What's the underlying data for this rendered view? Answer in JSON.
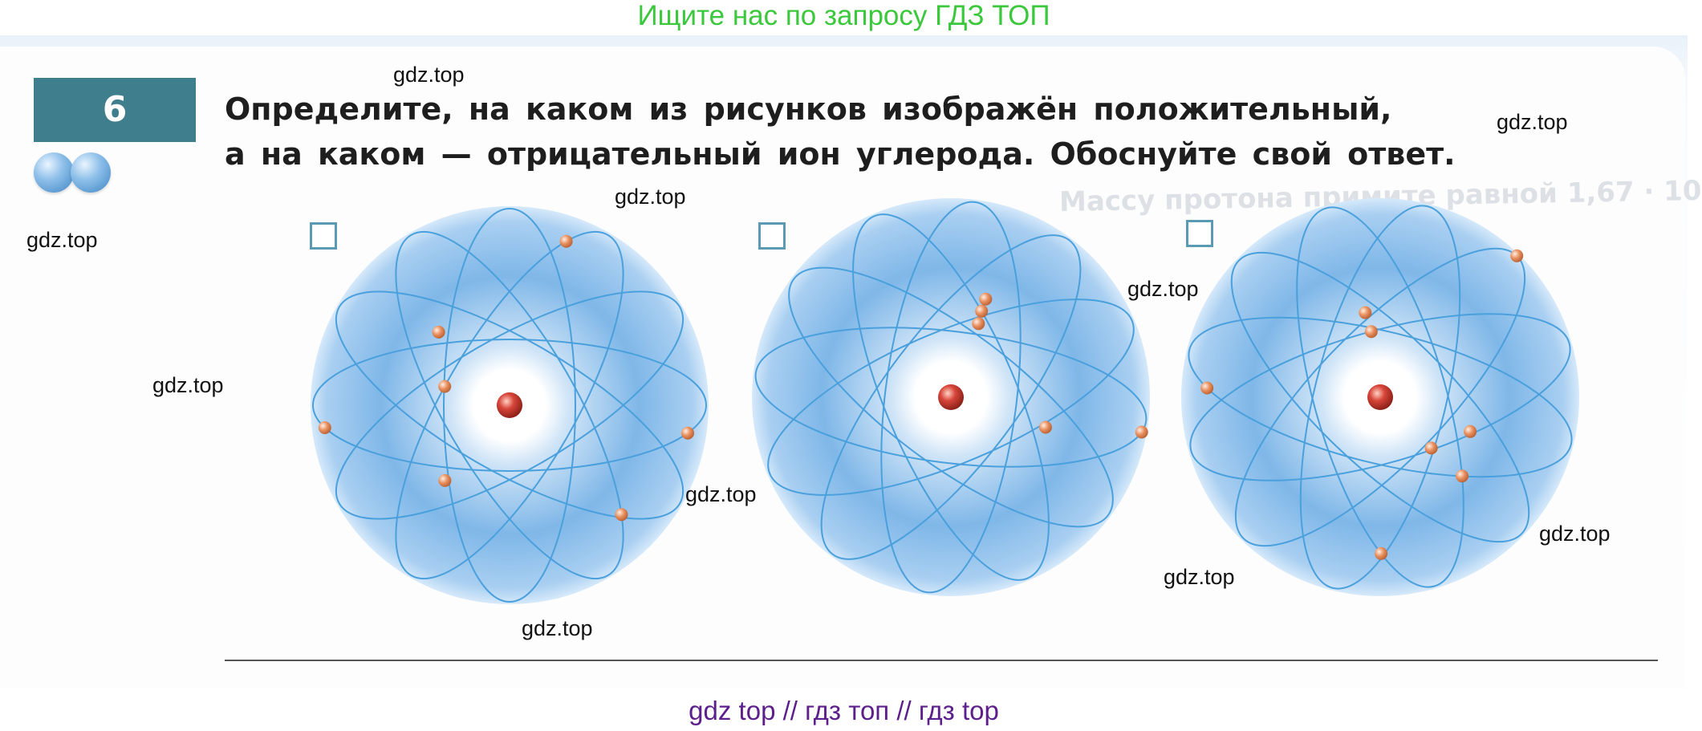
{
  "banner": {
    "text": "Ищите нас по запросу ГДЗ ТОП"
  },
  "task": {
    "number": "6",
    "difficulty_level": 2,
    "line1": "Определите, на каком из рисунков изображён положительный,",
    "line2": "а на каком — отрицательный ион углерода. Обоснуйте свой ответ."
  },
  "ghost_text": "Массу протона примите равной 1,67 · 10",
  "atoms": [
    {
      "name": "atom-1",
      "electron_count": 7,
      "answer_checked": false
    },
    {
      "name": "atom-2",
      "electron_count": 5,
      "answer_checked": false
    },
    {
      "name": "atom-3",
      "electron_count": 8,
      "answer_checked": false
    }
  ],
  "watermarks": [
    "gdz.top",
    "gdz.top",
    "gdz.top",
    "gdz.top",
    "gdz.top",
    "gdz.top",
    "gdz.top",
    "gdz.top",
    "gdz.top",
    "gdz.top"
  ],
  "footer": {
    "text": "gdz top  //  гдз топ  //  гдз top"
  },
  "colors": {
    "banner_green": "#3cc83c",
    "badge_teal": "#3f7e8c",
    "orbit_blue": "#4aa0dc",
    "nucleus_red": "#d8453a",
    "electron_orange": "#e9905f",
    "footer_purple": "#5c1f8c"
  }
}
